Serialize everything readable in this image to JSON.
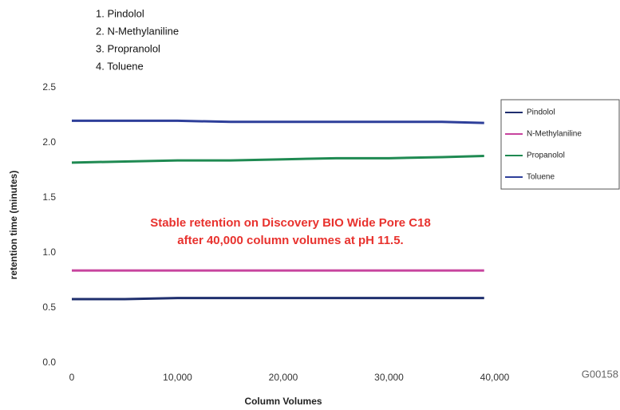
{
  "chart_data": {
    "type": "line",
    "compound_list": [
      "1. Pindolol",
      "2. N-Methylaniline",
      "3. Propranolol",
      "4. Toluene"
    ],
    "annotation": [
      "Stable retention on Discovery BIO Wide Pore C18",
      "after 40,000 column volumes at pH 11.5."
    ],
    "x_label": "Column Volumes",
    "y_label": "retention time (minutes)",
    "code": "G00158",
    "x": [
      0,
      5000,
      10000,
      15000,
      20000,
      25000,
      30000,
      35000,
      39000
    ],
    "series": [
      {
        "name": "Pindolol",
        "color": "#1f2f6e",
        "values": [
          0.58,
          0.58,
          0.59,
          0.59,
          0.59,
          0.59,
          0.59,
          0.59,
          0.59
        ]
      },
      {
        "name": "N-Methylaniline",
        "color": "#c8449e",
        "values": [
          0.84,
          0.84,
          0.84,
          0.84,
          0.84,
          0.84,
          0.84,
          0.84,
          0.84
        ]
      },
      {
        "name": "Propanolol",
        "color": "#1f8a52",
        "values": [
          1.82,
          1.83,
          1.84,
          1.84,
          1.85,
          1.86,
          1.86,
          1.87,
          1.88
        ]
      },
      {
        "name": "Toluene",
        "color": "#2e3f9a",
        "values": [
          2.2,
          2.2,
          2.2,
          2.19,
          2.19,
          2.19,
          2.19,
          2.19,
          2.18
        ]
      }
    ],
    "xlim": [
      0,
      40000
    ],
    "xticks": [
      0,
      {
        "value": 10000,
        "label": "10,000"
      },
      {
        "value": 20000,
        "label": "20,000"
      },
      {
        "value": 30000,
        "label": "30,000"
      },
      {
        "value": 40000,
        "label": "40,000"
      }
    ],
    "ylim": [
      0,
      2.5
    ],
    "yticks": [
      {
        "value": 0,
        "label": "0.0"
      },
      0.5,
      {
        "value": 1,
        "label": "1.0"
      },
      1.5,
      {
        "value": 2,
        "label": "2.0"
      },
      2.5
    ],
    "grid": false,
    "legend": "right"
  }
}
